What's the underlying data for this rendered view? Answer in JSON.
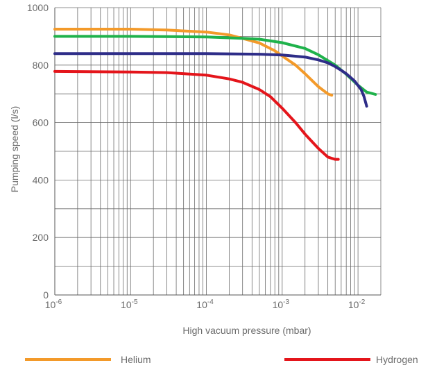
{
  "chart_data": {
    "type": "line",
    "title": "",
    "xlabel": "High vacuum pressure (mbar)",
    "ylabel": "Pumping speed (l/s)",
    "xscale": "log",
    "xlim": [
      "1e-6",
      "0.02"
    ],
    "ylim": [
      0,
      1000
    ],
    "grid": true,
    "legend_placement": "bottom",
    "x_ticks": [
      {
        "base": "10",
        "exp": "-6",
        "value": 1e-06
      },
      {
        "base": "10",
        "exp": "-5",
        "value": 1e-05
      },
      {
        "base": "10",
        "exp": "-4",
        "value": 0.0001
      },
      {
        "base": "10",
        "exp": "-3",
        "value": 0.001
      },
      {
        "base": "10",
        "exp": "-2",
        "value": 0.01
      }
    ],
    "y_ticks": [
      {
        "label": "0",
        "value": 0
      },
      {
        "label": "200",
        "value": 200
      },
      {
        "label": "400",
        "value": 400
      },
      {
        "label": "600",
        "value": 600
      },
      {
        "label": "800",
        "value": 800
      },
      {
        "label": "1000",
        "value": 1000
      }
    ],
    "series": [
      {
        "name": "Helium",
        "color": "#f39a2a",
        "points": [
          [
            1e-06,
            925
          ],
          [
            5e-06,
            925
          ],
          [
            1e-05,
            925
          ],
          [
            3e-05,
            922
          ],
          [
            0.0001,
            915
          ],
          [
            0.0002,
            905
          ],
          [
            0.0003,
            893
          ],
          [
            0.0005,
            877
          ],
          [
            0.0008,
            850
          ],
          [
            0.001,
            832
          ],
          [
            0.0015,
            800
          ],
          [
            0.002,
            770
          ],
          [
            0.003,
            725
          ],
          [
            0.004,
            700
          ],
          [
            0.0045,
            695
          ]
        ]
      },
      {
        "name": "",
        "color": "#1fb24b",
        "points": [
          [
            1e-06,
            900
          ],
          [
            1e-05,
            900
          ],
          [
            0.0001,
            898
          ],
          [
            0.0003,
            893
          ],
          [
            0.0005,
            890
          ],
          [
            0.001,
            878
          ],
          [
            0.002,
            858
          ],
          [
            0.003,
            836
          ],
          [
            0.005,
            800
          ],
          [
            0.007,
            768
          ],
          [
            0.01,
            730
          ],
          [
            0.013,
            706
          ],
          [
            0.017,
            698
          ]
        ]
      },
      {
        "name": "",
        "color": "#2e2d88",
        "points": [
          [
            1e-06,
            840
          ],
          [
            1e-05,
            840
          ],
          [
            0.0001,
            840
          ],
          [
            0.0005,
            838
          ],
          [
            0.001,
            835
          ],
          [
            0.002,
            828
          ],
          [
            0.003,
            818
          ],
          [
            0.004,
            808
          ],
          [
            0.005,
            795
          ],
          [
            0.006,
            782
          ],
          [
            0.007,
            770
          ],
          [
            0.009,
            745
          ],
          [
            0.011,
            715
          ],
          [
            0.012,
            690
          ],
          [
            0.013,
            657
          ]
        ]
      },
      {
        "name": "Hydrogen",
        "color": "#e4151b",
        "points": [
          [
            1e-06,
            778
          ],
          [
            1e-05,
            776
          ],
          [
            3e-05,
            774
          ],
          [
            0.0001,
            765
          ],
          [
            0.0002,
            752
          ],
          [
            0.0003,
            740
          ],
          [
            0.0005,
            715
          ],
          [
            0.0007,
            690
          ],
          [
            0.001,
            650
          ],
          [
            0.0015,
            600
          ],
          [
            0.002,
            560
          ],
          [
            0.003,
            510
          ],
          [
            0.004,
            480
          ],
          [
            0.005,
            472
          ],
          [
            0.0055,
            472
          ]
        ]
      }
    ]
  }
}
